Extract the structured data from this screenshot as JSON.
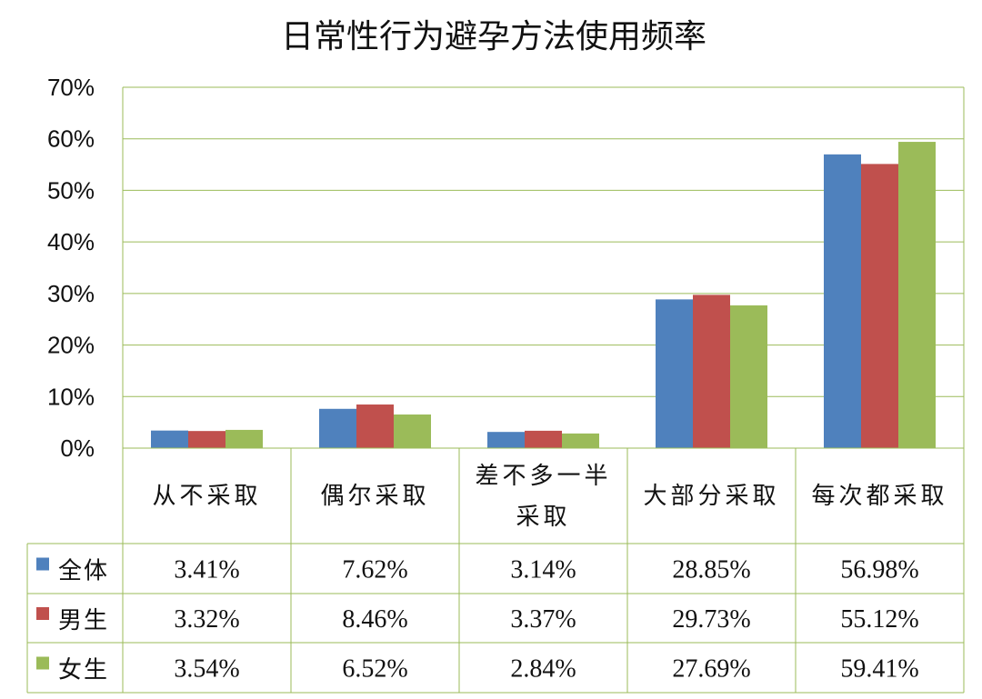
{
  "chart_data": {
    "type": "bar",
    "title": "日常性行为避孕方法使用频率",
    "categories": [
      "从不采取",
      "偶尔采取",
      "差不多一半采取",
      "大部分采取",
      "每次都采取"
    ],
    "y_ticks": [
      "0%",
      "10%",
      "20%",
      "30%",
      "40%",
      "50%",
      "60%",
      "70%"
    ],
    "ylim": [
      0,
      70
    ],
    "grid": true,
    "legend": "data-table",
    "series": [
      {
        "name": "全体",
        "color": "#4F81BD",
        "values": [
          3.41,
          7.62,
          3.14,
          28.85,
          56.98
        ],
        "labels": [
          "3.41%",
          "7.62%",
          "3.14%",
          "28.85%",
          "56.98%"
        ]
      },
      {
        "name": "男生",
        "color": "#C0504D",
        "values": [
          3.32,
          8.46,
          3.37,
          29.73,
          55.12
        ],
        "labels": [
          "3.32%",
          "8.46%",
          "3.37%",
          "29.73%",
          "55.12%"
        ]
      },
      {
        "name": "女生",
        "color": "#9BBB59",
        "values": [
          3.54,
          6.52,
          2.84,
          27.69,
          59.41
        ],
        "labels": [
          "3.54%",
          "6.52%",
          "2.84%",
          "27.69%",
          "59.41%"
        ]
      }
    ],
    "grid_color": "#9BBB59"
  }
}
